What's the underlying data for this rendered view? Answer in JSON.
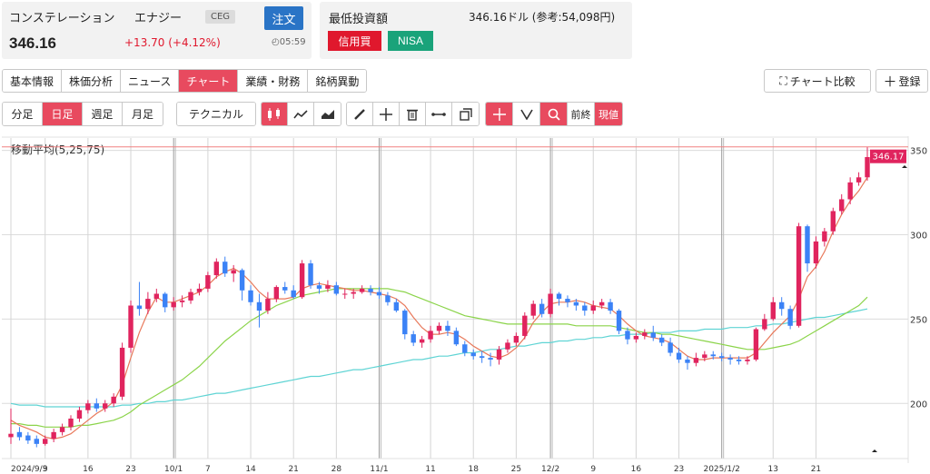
{
  "header": {
    "company_name": "コンステレーション",
    "company_name2": "エナジー",
    "ticker": "CEG",
    "order_label": "注文",
    "price": "346.16",
    "change": "+13.70 (+4.12%)",
    "time": "05:59",
    "min_invest_label": "最低投資額",
    "min_invest_value": "346.16ドル (参考:54,098円)",
    "margin_label": "信用買",
    "nisa_label": "NISA"
  },
  "tabs": [
    "基本情報",
    "株価分析",
    "ニュース",
    "チャート",
    "業績・財務",
    "銘柄異動"
  ],
  "active_tab": "チャート",
  "right_buttons": {
    "compare": "チャート比較",
    "register": "登録"
  },
  "periods": [
    "分足",
    "日足",
    "週足",
    "月足"
  ],
  "technical_label": "テクニカル",
  "nav_buttons": {
    "prev_end": "前終",
    "current": "現値"
  },
  "icons": [
    "candlestick-icon",
    "line-chart-icon",
    "area-chart-icon",
    "pencil-icon",
    "move-icon",
    "trash-icon",
    "horizontal-line-icon",
    "copy-icon",
    "crosshair-icon",
    "magnet-icon",
    "zoom-icon"
  ],
  "colors": {
    "up": "#e0245e",
    "down": "#3b82f6",
    "ma5": "#e8785a",
    "ma25": "#8bd44a",
    "ma75": "#5fd4d4",
    "accent": "#e84a5f"
  },
  "chart_data": {
    "type": "candlestick",
    "indicator_label": "移動平均(5,25,75)",
    "current_price_label": "346.17",
    "y_ticks": [
      200,
      250,
      300,
      350
    ],
    "ylim": [
      170,
      353
    ],
    "x_tick_labels": [
      "2024/9/3",
      "9",
      "16",
      "23",
      "10/1",
      "7",
      "14",
      "21",
      "28",
      "11/1",
      "11",
      "18",
      "25",
      "12/2",
      "9",
      "16",
      "23",
      "2025/1/2",
      "13",
      "21"
    ],
    "candles": [
      [
        180,
        182,
        197,
        176
      ],
      [
        183,
        180,
        186,
        178
      ],
      [
        181,
        178,
        183,
        176
      ],
      [
        179,
        176,
        181,
        174
      ],
      [
        176,
        179,
        181,
        175
      ],
      [
        179,
        183,
        185,
        177
      ],
      [
        183,
        186,
        188,
        181
      ],
      [
        186,
        191,
        193,
        184
      ],
      [
        191,
        196,
        198,
        189
      ],
      [
        196,
        200,
        202,
        194
      ],
      [
        200,
        197,
        203,
        195
      ],
      [
        197,
        200,
        202,
        195
      ],
      [
        200,
        204,
        206,
        198
      ],
      [
        204,
        233,
        236,
        202
      ],
      [
        233,
        258,
        261,
        230
      ],
      [
        258,
        256,
        272,
        252
      ],
      [
        256,
        262,
        266,
        253
      ],
      [
        262,
        265,
        268,
        260
      ],
      [
        265,
        257,
        266,
        254
      ],
      [
        257,
        260,
        263,
        255
      ],
      [
        260,
        261,
        264,
        257
      ],
      [
        261,
        266,
        268,
        259
      ],
      [
        266,
        268,
        271,
        264
      ],
      [
        268,
        276,
        278,
        266
      ],
      [
        276,
        284,
        286,
        274
      ],
      [
        284,
        277,
        287,
        275
      ],
      [
        277,
        279,
        282,
        272
      ],
      [
        279,
        267,
        280,
        261
      ],
      [
        267,
        260,
        270,
        258
      ],
      [
        260,
        255,
        265,
        245
      ],
      [
        255,
        262,
        266,
        253
      ],
      [
        262,
        269,
        270,
        260
      ],
      [
        269,
        267,
        272,
        265
      ],
      [
        267,
        263,
        270,
        262
      ],
      [
        263,
        283,
        285,
        262
      ],
      [
        283,
        270,
        285,
        268
      ],
      [
        270,
        268,
        272,
        265
      ],
      [
        268,
        270,
        273,
        266
      ],
      [
        270,
        265,
        272,
        264
      ],
      [
        265,
        265,
        268,
        262
      ],
      [
        265,
        266,
        268,
        262
      ],
      [
        266,
        268,
        270,
        265
      ],
      [
        268,
        266,
        270,
        264
      ],
      [
        266,
        264,
        269,
        262
      ],
      [
        264,
        260,
        266,
        258
      ],
      [
        260,
        255,
        262,
        254
      ],
      [
        255,
        241,
        256,
        238
      ],
      [
        241,
        236,
        243,
        234
      ],
      [
        236,
        238,
        240,
        233
      ],
      [
        238,
        243,
        246,
        236
      ],
      [
        243,
        246,
        248,
        241
      ],
      [
        246,
        243,
        249,
        240
      ],
      [
        243,
        235,
        245,
        234
      ],
      [
        235,
        230,
        237,
        228
      ],
      [
        230,
        228,
        232,
        226
      ],
      [
        228,
        227,
        231,
        224
      ],
      [
        227,
        226,
        230,
        222
      ],
      [
        226,
        232,
        234,
        223
      ],
      [
        232,
        236,
        238,
        230
      ],
      [
        236,
        240,
        242,
        234
      ],
      [
        240,
        252,
        254,
        238
      ],
      [
        252,
        259,
        261,
        250
      ],
      [
        259,
        253,
        262,
        251
      ],
      [
        253,
        265,
        268,
        251
      ],
      [
        265,
        262,
        266,
        258
      ],
      [
        262,
        260,
        264,
        257
      ],
      [
        260,
        258,
        262,
        255
      ],
      [
        258,
        255,
        260,
        252
      ],
      [
        255,
        258,
        261,
        253
      ],
      [
        258,
        260,
        262,
        256
      ],
      [
        260,
        255,
        262,
        253
      ],
      [
        255,
        243,
        256,
        241
      ],
      [
        243,
        238,
        245,
        235
      ],
      [
        238,
        240,
        242,
        236
      ],
      [
        240,
        242,
        244,
        238
      ],
      [
        242,
        239,
        246,
        237
      ],
      [
        239,
        236,
        241,
        234
      ],
      [
        236,
        230,
        239,
        228
      ],
      [
        230,
        226,
        233,
        224
      ],
      [
        226,
        224,
        228,
        220
      ],
      [
        224,
        227,
        230,
        222
      ],
      [
        227,
        229,
        231,
        225
      ],
      [
        229,
        228,
        231,
        226
      ],
      [
        228,
        227,
        230,
        225
      ],
      [
        227,
        226,
        229,
        223
      ],
      [
        226,
        225,
        228,
        223
      ],
      [
        225,
        226,
        228,
        223
      ],
      [
        226,
        244,
        245,
        225
      ],
      [
        244,
        250,
        253,
        243
      ],
      [
        250,
        260,
        263,
        249
      ],
      [
        260,
        256,
        263,
        252
      ],
      [
        256,
        246,
        258,
        244
      ],
      [
        246,
        305,
        307,
        245
      ],
      [
        305,
        283,
        306,
        278
      ],
      [
        283,
        296,
        299,
        280
      ],
      [
        296,
        302,
        304,
        293
      ],
      [
        302,
        314,
        316,
        300
      ],
      [
        314,
        321,
        324,
        312
      ],
      [
        321,
        331,
        334,
        318
      ],
      [
        331,
        334,
        337,
        329
      ],
      [
        334,
        346,
        352,
        332
      ]
    ],
    "ma5": [
      190,
      187,
      185,
      183,
      180,
      179,
      180,
      182,
      186,
      190,
      194,
      197,
      201,
      211,
      227,
      242,
      254,
      263,
      260,
      260,
      262,
      264,
      266,
      270,
      275,
      278,
      280,
      277,
      272,
      266,
      262,
      262,
      262,
      263,
      268,
      270,
      271,
      270,
      269,
      268,
      267,
      267,
      266,
      265,
      264,
      262,
      258,
      251,
      245,
      241,
      241,
      242,
      241,
      238,
      234,
      231,
      228,
      227,
      229,
      233,
      239,
      248,
      254,
      259,
      260,
      260,
      261,
      260,
      258,
      257,
      256,
      252,
      247,
      243,
      240,
      239,
      238,
      236,
      232,
      228,
      226,
      226,
      227,
      227,
      227,
      227,
      227,
      230,
      236,
      242,
      247,
      252,
      262,
      275,
      281,
      290,
      302,
      312,
      320,
      326,
      334
    ],
    "ma25": [
      188,
      188,
      187,
      187,
      186,
      186,
      186,
      186,
      187,
      187,
      188,
      189,
      190,
      192,
      195,
      199,
      202,
      205,
      208,
      211,
      214,
      218,
      222,
      227,
      232,
      237,
      241,
      245,
      249,
      252,
      255,
      258,
      260,
      262,
      264,
      265,
      266,
      267,
      268,
      268,
      268,
      268,
      268,
      268,
      268,
      267,
      266,
      264,
      262,
      260,
      258,
      256,
      254,
      252,
      251,
      250,
      249,
      248,
      247,
      247,
      247,
      247,
      247,
      247,
      247,
      247,
      246,
      246,
      246,
      246,
      246,
      245,
      244,
      243,
      242,
      242,
      241,
      241,
      240,
      239,
      238,
      237,
      236,
      235,
      234,
      233,
      232,
      232,
      232,
      233,
      234,
      235,
      237,
      240,
      243,
      246,
      249,
      252,
      255,
      258,
      263
    ],
    "ma75": [
      200,
      199,
      199,
      199,
      198,
      198,
      198,
      198,
      198,
      198,
      198,
      198,
      198,
      199,
      199,
      200,
      200,
      201,
      201,
      202,
      202,
      203,
      204,
      205,
      206,
      206,
      207,
      208,
      209,
      210,
      211,
      212,
      213,
      214,
      215,
      216,
      216,
      217,
      218,
      219,
      220,
      220,
      221,
      222,
      223,
      224,
      225,
      226,
      226,
      227,
      228,
      228,
      229,
      230,
      230,
      231,
      232,
      232,
      233,
      234,
      234,
      235,
      236,
      236,
      237,
      237,
      238,
      238,
      239,
      239,
      240,
      240,
      241,
      241,
      241,
      242,
      242,
      242,
      243,
      243,
      243,
      244,
      244,
      244,
      245,
      245,
      245,
      246,
      246,
      247,
      247,
      248,
      249,
      250,
      251,
      251,
      252,
      253,
      254,
      255,
      256
    ]
  }
}
